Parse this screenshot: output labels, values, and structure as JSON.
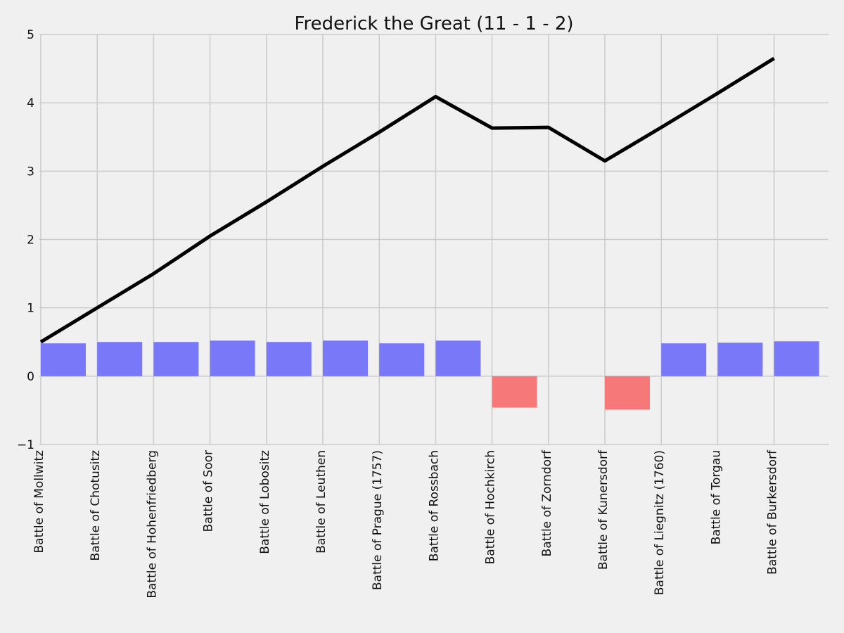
{
  "chart_data": {
    "type": "bar",
    "title": "Frederick the Great (11 - 1 - 2)",
    "xlabel": "",
    "ylabel": "",
    "ylim": [
      -1,
      5
    ],
    "yticks": [
      "−1",
      "0",
      "1",
      "2",
      "3",
      "4",
      "5"
    ],
    "grid": true,
    "categories": [
      "Battle of Mollwitz",
      "Battle of Chotusitz",
      "Battle of Hohenfriedberg",
      "Battle of Soor",
      "Battle of Lobositz",
      "Battle of Leuthen",
      "Battle of Prague (1757)",
      "Battle of Rossbach",
      "Battle of Hochkirch",
      "Battle of Zorndorf",
      "Battle of Kunersdorf",
      "Battle of Liegnitz (1760)",
      "Battle of Torgau",
      "Battle of Burkersdorf"
    ],
    "series": [
      {
        "kind": "bar",
        "values": [
          0.48,
          0.5,
          0.5,
          0.52,
          0.5,
          0.52,
          0.48,
          0.52,
          -0.46,
          0.0,
          -0.49,
          0.48,
          0.49,
          0.51
        ],
        "positive_color": "#7878f8",
        "negative_color": "#f77878"
      },
      {
        "kind": "line",
        "values": [
          0.5,
          1.0,
          1.5,
          2.05,
          2.55,
          3.07,
          3.57,
          4.09,
          3.63,
          3.64,
          3.15,
          3.64,
          4.14,
          4.65
        ],
        "color": "#000000"
      }
    ]
  }
}
